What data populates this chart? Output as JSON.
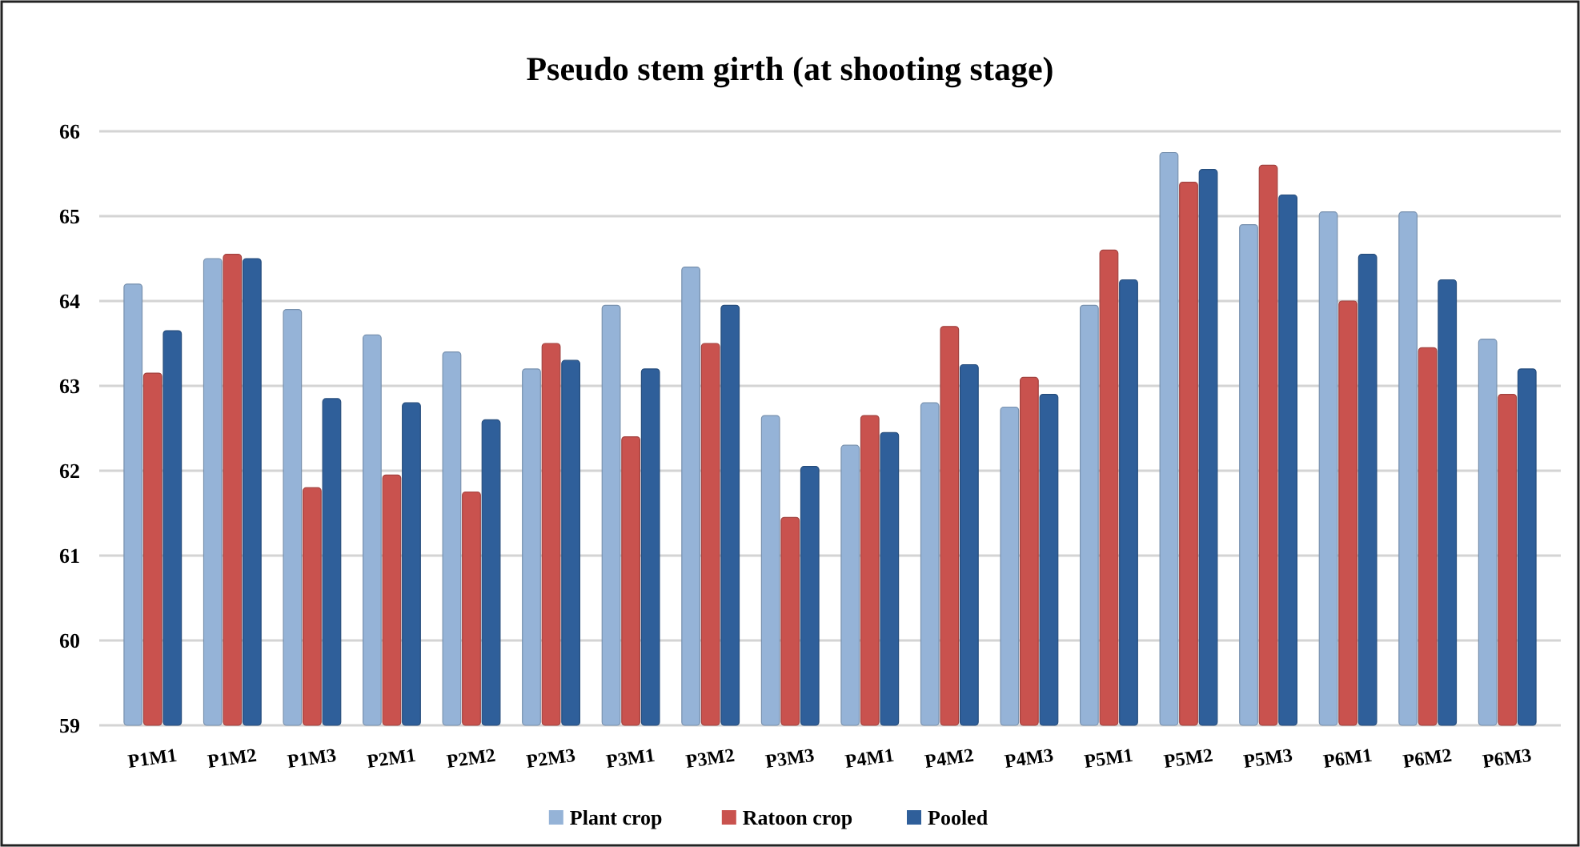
{
  "chart_data": {
    "type": "bar",
    "title": "Pseudo stem girth (at shooting stage)",
    "categories": [
      "P1M1",
      "P1M2",
      "P1M3",
      "P2M1",
      "P2M2",
      "P2M3",
      "P3M1",
      "P3M2",
      "P3M3",
      "P4M1",
      "P4M2",
      "P4M3",
      "P5M1",
      "P5M2",
      "P5M3",
      "P6M1",
      "P6M2",
      "P6M3"
    ],
    "series": [
      {
        "name": "Plant crop",
        "color": "#95b3d7",
        "values": [
          64.2,
          64.5,
          63.9,
          63.6,
          63.4,
          63.2,
          63.95,
          64.4,
          62.65,
          62.3,
          62.8,
          62.75,
          63.95,
          65.75,
          64.9,
          65.05,
          65.05,
          63.55
        ]
      },
      {
        "name": "Ratoon crop",
        "color": "#c9524e",
        "values": [
          63.15,
          64.55,
          61.8,
          61.95,
          61.75,
          63.5,
          62.4,
          63.5,
          61.45,
          62.65,
          63.7,
          63.1,
          64.6,
          65.4,
          65.6,
          64.0,
          63.45,
          62.9
        ]
      },
      {
        "name": "Pooled",
        "color": "#2f5f9a",
        "values": [
          63.65,
          64.5,
          62.85,
          62.8,
          62.6,
          63.3,
          63.2,
          63.95,
          62.05,
          62.45,
          63.25,
          62.9,
          64.25,
          65.55,
          65.25,
          64.55,
          64.25,
          63.2
        ]
      }
    ],
    "ylim": [
      59,
      66
    ],
    "yticks": [
      59,
      60,
      61,
      62,
      63,
      64,
      65,
      66
    ],
    "grid": "y",
    "legend": "bottom"
  }
}
